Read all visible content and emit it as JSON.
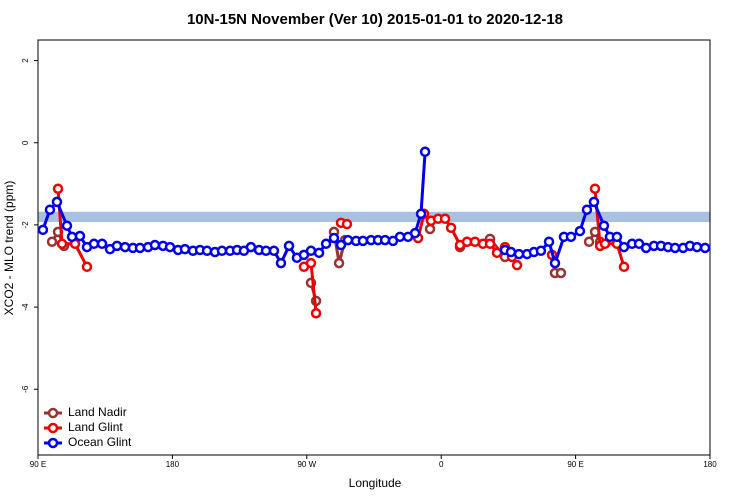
{
  "chart_data": {
    "type": "line",
    "title": "10N-15N November (Ver 10)   2015-01-01 to 2020-12-18",
    "x_label": "Longitude",
    "y_label": "XCO2 - MLO trend (ppm)",
    "xlim": [
      90,
      540
    ],
    "ylim": [
      -7.6,
      2.5
    ],
    "xticks": [
      {
        "value": 90,
        "label": "90 E"
      },
      {
        "value": 180,
        "label": "180"
      },
      {
        "value": 270,
        "label": "90 W"
      },
      {
        "value": 360,
        "label": "0"
      },
      {
        "value": 450,
        "label": "90 E"
      },
      {
        "value": 540,
        "label": "180"
      }
    ],
    "yticks": [
      2,
      0,
      -2,
      -4,
      -6
    ],
    "band": {
      "range": [
        -1.93,
        -1.68
      ],
      "color": "#a9c0e0"
    },
    "legend": "bottom-left",
    "series": [
      {
        "name": "Land Nadir",
        "color": "#993333",
        "x": [
          99.4,
          103.4,
          107.4,
          null,
          272.8,
          276.2,
          null,
          288.2,
          291.6,
          295.6,
          null,
          352.5,
          null,
          372.6,
          392.7,
          402.7,
          null,
          436.2,
          440.2,
          null,
          459.0,
          463.0,
          466.4
        ],
        "values": [
          -2.41,
          -2.17,
          -2.51,
          null,
          -3.41,
          -3.85,
          null,
          -2.17,
          -2.93,
          -2.37,
          null,
          -2.1,
          null,
          -2.54,
          -2.34,
          -2.78,
          null,
          -3.17,
          -3.17,
          null,
          -2.41,
          -2.17,
          -2.41
        ]
      },
      {
        "name": "Land Glint",
        "color": "#ee0000",
        "x": [
          103.4,
          106.1,
          114.8,
          122.8,
          null,
          268.1,
          272.8,
          276.2,
          null,
          292.9,
          296.9,
          null,
          344.5,
          348.5,
          353.2,
          357.9,
          362.6,
          366.6,
          372.6,
          377.3,
          382.6,
          388.0,
          392.7,
          397.4,
          402.7,
          407.4,
          410.8,
          null,
          434.2,
          null,
          463.0,
          466.4,
          469.7,
          477.7,
          482.4
        ],
        "values": [
          -1.12,
          -2.46,
          -2.46,
          -3.02,
          null,
          -3.02,
          -2.93,
          -4.15,
          null,
          -1.95,
          -1.98,
          null,
          -2.32,
          -1.73,
          -1.9,
          -1.85,
          -1.85,
          -2.07,
          -2.49,
          -2.41,
          -2.41,
          -2.46,
          -2.46,
          -2.68,
          -2.54,
          -2.78,
          -2.98,
          null,
          -2.73,
          null,
          -1.12,
          -2.51,
          -2.46,
          -2.46,
          -3.02
        ]
      },
      {
        "name": "Ocean Glint",
        "color": "#0000ee",
        "x": [
          93.3,
          98.0,
          102.7,
          109.4,
          112.8,
          118.1,
          122.8,
          127.5,
          132.9,
          138.2,
          142.9,
          148.3,
          153.6,
          158.3,
          163.7,
          168.3,
          173.7,
          178.4,
          183.8,
          188.4,
          193.8,
          198.5,
          203.2,
          208.5,
          213.2,
          218.6,
          223.3,
          227.9,
          232.6,
          238.0,
          242.7,
          248.0,
          252.7,
          258.1,
          263.4,
          268.1,
          272.8,
          278.2,
          282.9,
          288.2,
          292.9,
          297.6,
          303.0,
          307.6,
          313.0,
          317.7,
          322.4,
          327.7,
          332.4,
          337.8,
          342.5,
          346.5,
          349.2,
          null,
          402.7,
          406.7,
          412.1,
          417.5,
          422.1,
          426.8,
          432.2,
          436.2,
          442.2,
          446.9,
          452.9,
          457.6,
          462.3,
          469.0,
          473.0,
          477.7,
          482.4,
          487.8,
          492.5,
          497.2,
          502.5,
          507.2,
          511.9,
          516.6,
          522.0,
          526.6,
          531.3,
          536.7
        ],
        "values": [
          -2.12,
          -1.63,
          -1.44,
          -2.02,
          -2.29,
          -2.27,
          -2.54,
          -2.46,
          -2.46,
          -2.59,
          -2.51,
          -2.54,
          -2.56,
          -2.56,
          -2.54,
          -2.49,
          -2.51,
          -2.54,
          -2.61,
          -2.59,
          -2.63,
          -2.61,
          -2.63,
          -2.66,
          -2.63,
          -2.63,
          -2.61,
          -2.63,
          -2.54,
          -2.61,
          -2.63,
          -2.63,
          -2.93,
          -2.51,
          -2.8,
          -2.73,
          -2.63,
          -2.68,
          -2.46,
          -2.32,
          -2.49,
          -2.37,
          -2.39,
          -2.39,
          -2.37,
          -2.37,
          -2.37,
          -2.39,
          -2.29,
          -2.29,
          -2.2,
          -1.73,
          -0.22,
          null,
          -2.61,
          -2.66,
          -2.71,
          -2.71,
          -2.66,
          -2.63,
          -2.41,
          -2.93,
          -2.29,
          -2.29,
          -2.15,
          -1.63,
          -1.44,
          -2.02,
          -2.29,
          -2.29,
          -2.54,
          -2.46,
          -2.46,
          -2.56,
          -2.51,
          -2.51,
          -2.54,
          -2.56,
          -2.56,
          -2.51,
          -2.54,
          -2.56
        ]
      }
    ]
  }
}
